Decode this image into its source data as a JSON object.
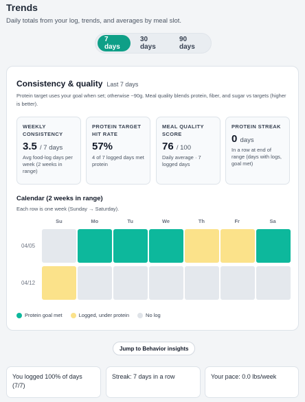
{
  "header": {
    "title": "Trends",
    "subtitle": "Daily totals from your log, trends, and averages by meal slot."
  },
  "range_toggle": {
    "options": [
      "7 days",
      "30 days",
      "90 days"
    ],
    "selected": "7 days"
  },
  "card": {
    "title": "Consistency & quality",
    "range_label": "Last 7 days",
    "description": "Protein target uses your goal when set; otherwise ~90g. Meal quality blends protein, fiber, and sugar vs targets (higher is better).",
    "stats": [
      {
        "label": "Weekly consistency",
        "value": "3.5",
        "unit": "/ 7 days",
        "note": "Avg food-log days per week (2 weeks in range)"
      },
      {
        "label": "Protein target hit rate",
        "value": "57%",
        "unit": "",
        "note": "4 of 7 logged days met protein"
      },
      {
        "label": "Meal quality score",
        "value": "76",
        "unit": "/ 100",
        "note": "Daily average · 7 logged days"
      },
      {
        "label": "Protein streak",
        "value": "0",
        "unit": "days",
        "note": "In a row at end of range (days with logs, goal met)"
      }
    ],
    "calendar": {
      "title": "Calendar (2 weeks in range)",
      "subtitle": "Each row is one week (Sunday → Saturday).",
      "days": [
        "Su",
        "Mo",
        "Tu",
        "We",
        "Th",
        "Fr",
        "Sa"
      ],
      "weeks": [
        {
          "label": "04/05",
          "cells": [
            "none",
            "goal",
            "goal",
            "goal",
            "logged",
            "logged",
            "goal"
          ]
        },
        {
          "label": "04/12",
          "cells": [
            "logged",
            "none",
            "none",
            "none",
            "none",
            "none",
            "none"
          ]
        }
      ]
    },
    "legend": [
      {
        "key": "goal",
        "label": "Protein goal met",
        "color": "#0db89c"
      },
      {
        "key": "logged",
        "label": "Logged, under protein",
        "color": "#fbe28a"
      },
      {
        "key": "none",
        "label": "No log",
        "color": "#dfe3e8"
      }
    ]
  },
  "jump_button": {
    "label": "Jump to Behavior insights"
  },
  "summaries": [
    "You logged 100% of days (7/7)",
    "Streak: 7 days in a row",
    "Your pace: 0.0 lbs/week"
  ]
}
